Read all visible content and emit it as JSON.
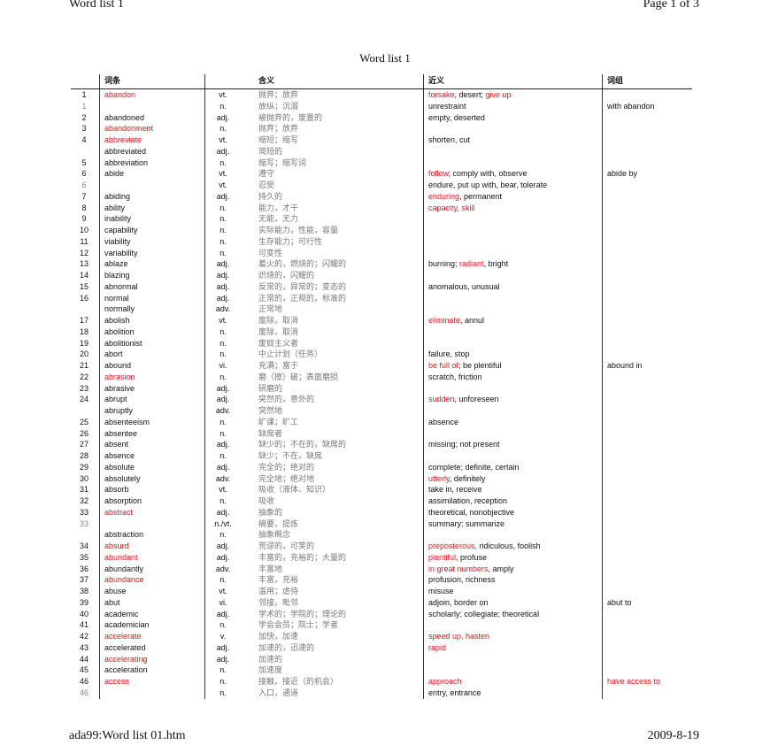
{
  "page_header": {
    "left": "Word list 1",
    "right": "Page 1 of 3"
  },
  "title": "Word list 1",
  "columns": [
    "词条",
    "含义",
    "近义",
    "词组"
  ],
  "colors": {
    "highlight": "#e8141b",
    "meaning": "#777777"
  },
  "rows": [
    {
      "num": "1",
      "word": "abandon",
      "word_red": true,
      "pos": "vt.",
      "meaning": "抛弃；放弃",
      "syn": [
        {
          "t": "forsake",
          "red": true
        },
        {
          "t": ", desert; "
        },
        {
          "t": "give up",
          "red": true
        }
      ],
      "phrase": ""
    },
    {
      "num": "1",
      "num_gray": true,
      "word": "",
      "pos": "n.",
      "meaning": "放纵；沉溺",
      "syn": [
        {
          "t": "unrestraint"
        }
      ],
      "phrase": "with abandon"
    },
    {
      "num": "2",
      "word": "abandoned",
      "pos": "adj.",
      "meaning": "被抛弃的，废置的",
      "syn": [
        {
          "t": "empty, deserted"
        }
      ],
      "phrase": ""
    },
    {
      "num": "3",
      "word": "abandonment",
      "word_red": true,
      "pos": "n.",
      "meaning": "抛弃；放弃",
      "syn": [],
      "phrase": ""
    },
    {
      "num": "4",
      "word": "abbreviate",
      "word_red": true,
      "pos": "vt.",
      "meaning": "缩短；缩写",
      "syn": [
        {
          "t": "shorten, cut"
        }
      ],
      "phrase": ""
    },
    {
      "num": "",
      "word": "abbreviated",
      "pos": "adj.",
      "meaning": "简短的",
      "syn": [],
      "phrase": ""
    },
    {
      "num": "5",
      "word": "abbreviation",
      "pos": "n.",
      "meaning": "缩写；缩写词",
      "syn": [],
      "phrase": ""
    },
    {
      "num": "6",
      "word": "abide",
      "pos": "vt.",
      "meaning": "遵守",
      "syn": [
        {
          "t": "follow",
          "red": true
        },
        {
          "t": ", comply with, observe"
        }
      ],
      "phrase": "abide by"
    },
    {
      "num": "6",
      "num_gray": true,
      "word": "",
      "pos": "vt.",
      "meaning": "忍受",
      "syn": [
        {
          "t": "endure, put up with, bear, tolerate"
        }
      ],
      "phrase": ""
    },
    {
      "num": "7",
      "word": "abiding",
      "pos": "adj.",
      "meaning": "持久的",
      "syn": [
        {
          "t": "enduring",
          "red": true
        },
        {
          "t": ", permanent"
        }
      ],
      "phrase": ""
    },
    {
      "num": "8",
      "word": "ability",
      "pos": "n.",
      "meaning": "能力，才干",
      "syn": [
        {
          "t": "capacity, skill",
          "red": true
        }
      ],
      "phrase": ""
    },
    {
      "num": "9",
      "word": "inability",
      "pos": "n.",
      "meaning": "无能，无力",
      "syn": [],
      "phrase": ""
    },
    {
      "num": "10",
      "word": "capability",
      "pos": "n.",
      "meaning": "实际能力，性能，容量",
      "syn": [],
      "phrase": ""
    },
    {
      "num": "11",
      "word": "viability",
      "pos": "n.",
      "meaning": "生存能力；可行性",
      "syn": [],
      "phrase": ""
    },
    {
      "num": "12",
      "word": "variability",
      "pos": "n.",
      "meaning": "可变性",
      "syn": [],
      "phrase": ""
    },
    {
      "num": "13",
      "word": "ablaze",
      "pos": "adj.",
      "meaning": "着火的，燃烧的；闪耀的",
      "syn": [
        {
          "t": "burning; "
        },
        {
          "t": "radiant",
          "red": true
        },
        {
          "t": ", bright"
        }
      ],
      "phrase": ""
    },
    {
      "num": "14",
      "word": "blazing",
      "pos": "adj.",
      "meaning": "炽烧的，闪耀的",
      "syn": [],
      "phrase": ""
    },
    {
      "num": "15",
      "word": "abnormal",
      "pos": "adj.",
      "meaning": "反常的，异常的；变态的",
      "syn": [
        {
          "t": "anomalous, unusual"
        }
      ],
      "phrase": ""
    },
    {
      "num": "16",
      "word": "normal",
      "pos": "adj.",
      "meaning": "正常的，正规的，标准的",
      "syn": [],
      "phrase": ""
    },
    {
      "num": "",
      "word": "normally",
      "pos": "adv.",
      "meaning": "正常地",
      "syn": [],
      "phrase": ""
    },
    {
      "num": "17",
      "word": "abolish",
      "pos": "vt.",
      "meaning": "废除，取消",
      "syn": [
        {
          "t": "eliminate",
          "red": true
        },
        {
          "t": ", annul"
        }
      ],
      "phrase": ""
    },
    {
      "num": "18",
      "word": "abolition",
      "pos": "n.",
      "meaning": "废除，取消",
      "syn": [],
      "phrase": ""
    },
    {
      "num": "19",
      "word": "abolitionist",
      "pos": "n.",
      "meaning": "废奴主义者",
      "syn": [],
      "phrase": ""
    },
    {
      "num": "20",
      "word": "abort",
      "pos": "n.",
      "meaning": "中止计划（任务）",
      "syn": [
        {
          "t": "failure, stop"
        }
      ],
      "phrase": ""
    },
    {
      "num": "21",
      "word": "abound",
      "pos": "vi.",
      "meaning": "充满；富于",
      "syn": [
        {
          "t": "be full of",
          "red": true
        },
        {
          "t": "; be plentiful"
        }
      ],
      "phrase": "abound in"
    },
    {
      "num": "22",
      "word": "abrasion",
      "word_red": true,
      "pos": "n.",
      "meaning": "磨（擦）破；表面磨损",
      "syn": [
        {
          "t": "scratch, friction"
        }
      ],
      "phrase": ""
    },
    {
      "num": "23",
      "word": "abrasive",
      "pos": "adj.",
      "meaning": "研磨的",
      "syn": [],
      "phrase": ""
    },
    {
      "num": "24",
      "word": "abrupt",
      "pos": "adj.",
      "meaning": "突然的，意外的",
      "syn": [
        {
          "t": "sudden",
          "red": true
        },
        {
          "t": ", unforeseen"
        }
      ],
      "phrase": ""
    },
    {
      "num": "",
      "word": "abruptly",
      "pos": "adv.",
      "meaning": "突然地",
      "syn": [],
      "phrase": ""
    },
    {
      "num": "25",
      "word": "absenteeism",
      "pos": "n.",
      "meaning": "旷课；旷工",
      "syn": [
        {
          "t": "absence"
        }
      ],
      "phrase": ""
    },
    {
      "num": "26",
      "word": "absentee",
      "pos": "n.",
      "meaning": "缺席者",
      "syn": [],
      "phrase": ""
    },
    {
      "num": "27",
      "word": "absent",
      "pos": "adj.",
      "meaning": "缺少的；不在的，缺席的",
      "syn": [
        {
          "t": "missing; not present"
        }
      ],
      "phrase": ""
    },
    {
      "num": "28",
      "word": "absence",
      "pos": "n.",
      "meaning": "缺少；不在，缺席",
      "syn": [],
      "phrase": ""
    },
    {
      "num": "29",
      "word": "absolute",
      "pos": "adj.",
      "meaning": "完全的；绝对的",
      "syn": [
        {
          "t": "complete; definite, certain"
        }
      ],
      "phrase": ""
    },
    {
      "num": "30",
      "word": "absolutely",
      "pos": "adv.",
      "meaning": "完全地；绝对地",
      "syn": [
        {
          "t": "utterly",
          "red": true
        },
        {
          "t": ", definitely"
        }
      ],
      "phrase": ""
    },
    {
      "num": "31",
      "word": "absorb",
      "pos": "vt.",
      "meaning": "吸收（液体、知识）",
      "syn": [
        {
          "t": "take in, receive"
        }
      ],
      "phrase": ""
    },
    {
      "num": "32",
      "word": "absorption",
      "pos": "n.",
      "meaning": "吸收",
      "syn": [
        {
          "t": "assimilation, reception"
        }
      ],
      "phrase": ""
    },
    {
      "num": "33",
      "word": "abstract",
      "word_red": true,
      "pos": "adj.",
      "meaning": "抽象的",
      "syn": [
        {
          "t": "theoretical, nonobjective"
        }
      ],
      "phrase": ""
    },
    {
      "num": "33",
      "num_gray": true,
      "word": "",
      "pos": "n./vt.",
      "meaning": "摘要，提炼",
      "syn": [
        {
          "t": "summary; summarize"
        }
      ],
      "phrase": ""
    },
    {
      "num": "",
      "word": "abstraction",
      "pos": "n.",
      "meaning": "抽象概念",
      "syn": [],
      "phrase": ""
    },
    {
      "num": "34",
      "word": "absurd",
      "word_red": true,
      "pos": "adj.",
      "meaning": "荒谬的，可笑的",
      "syn": [
        {
          "t": "preposterous",
          "red": true
        },
        {
          "t": ", ridiculous, foolish"
        }
      ],
      "phrase": ""
    },
    {
      "num": "35",
      "word": "abundant",
      "word_red": true,
      "pos": "adj.",
      "meaning": "丰富的，充裕的；大量的",
      "syn": [
        {
          "t": "plentiful",
          "red": true
        },
        {
          "t": ", profuse"
        }
      ],
      "phrase": ""
    },
    {
      "num": "36",
      "word": "abundantly",
      "pos": "adv.",
      "meaning": "丰富地",
      "syn": [
        {
          "t": "in great numbers",
          "red": true
        },
        {
          "t": ", amply"
        }
      ],
      "phrase": ""
    },
    {
      "num": "37",
      "word": "abundance",
      "word_red": true,
      "pos": "n.",
      "meaning": "丰富，充裕",
      "syn": [
        {
          "t": "profusion, richness"
        }
      ],
      "phrase": ""
    },
    {
      "num": "38",
      "word": "abuse",
      "pos": "vt.",
      "meaning": "滥用；虐待",
      "syn": [
        {
          "t": "misuse"
        }
      ],
      "phrase": ""
    },
    {
      "num": "39",
      "word": "abut",
      "pos": "vi.",
      "meaning": "邻接，毗邻",
      "syn": [
        {
          "t": "adjoin, border on"
        }
      ],
      "phrase": "abut to"
    },
    {
      "num": "40",
      "word": "academic",
      "pos": "adj.",
      "meaning": "学术的；学院的；理论的",
      "syn": [
        {
          "t": "scholarly; collegiate; theoretical"
        }
      ],
      "phrase": ""
    },
    {
      "num": "41",
      "word": "academician",
      "pos": "n.",
      "meaning": "学会会员；院士；学者",
      "syn": [],
      "phrase": ""
    },
    {
      "num": "42",
      "word": "accelerate",
      "word_red": true,
      "pos": "v.",
      "meaning": "加快，加速",
      "syn": [
        {
          "t": "speed up, hasten",
          "red": true
        }
      ],
      "phrase": ""
    },
    {
      "num": "43",
      "word": "accelerated",
      "pos": "adj.",
      "meaning": "加速的，迅速的",
      "syn": [
        {
          "t": "rapid",
          "red": true
        }
      ],
      "phrase": ""
    },
    {
      "num": "44",
      "word": "accelerating",
      "word_red": true,
      "pos": "adj.",
      "meaning": "加速的",
      "syn": [],
      "phrase": ""
    },
    {
      "num": "45",
      "word": "acceleration",
      "pos": "n.",
      "meaning": "加速度",
      "syn": [],
      "phrase": ""
    },
    {
      "num": "46",
      "word": "access",
      "word_red": true,
      "pos": "n.",
      "meaning": "接触，接近（的机会）",
      "syn": [
        {
          "t": "approach",
          "red": true
        }
      ],
      "phrase": "have access to",
      "phrase_red": true
    },
    {
      "num": "46",
      "num_gray": true,
      "word": "",
      "pos": "n.",
      "meaning": "入口，通道",
      "syn": [
        {
          "t": "entry, entrance"
        }
      ],
      "phrase": ""
    }
  ],
  "page_footer": {
    "left": "ada99:Word list 01.htm",
    "right": "2009-8-19"
  }
}
